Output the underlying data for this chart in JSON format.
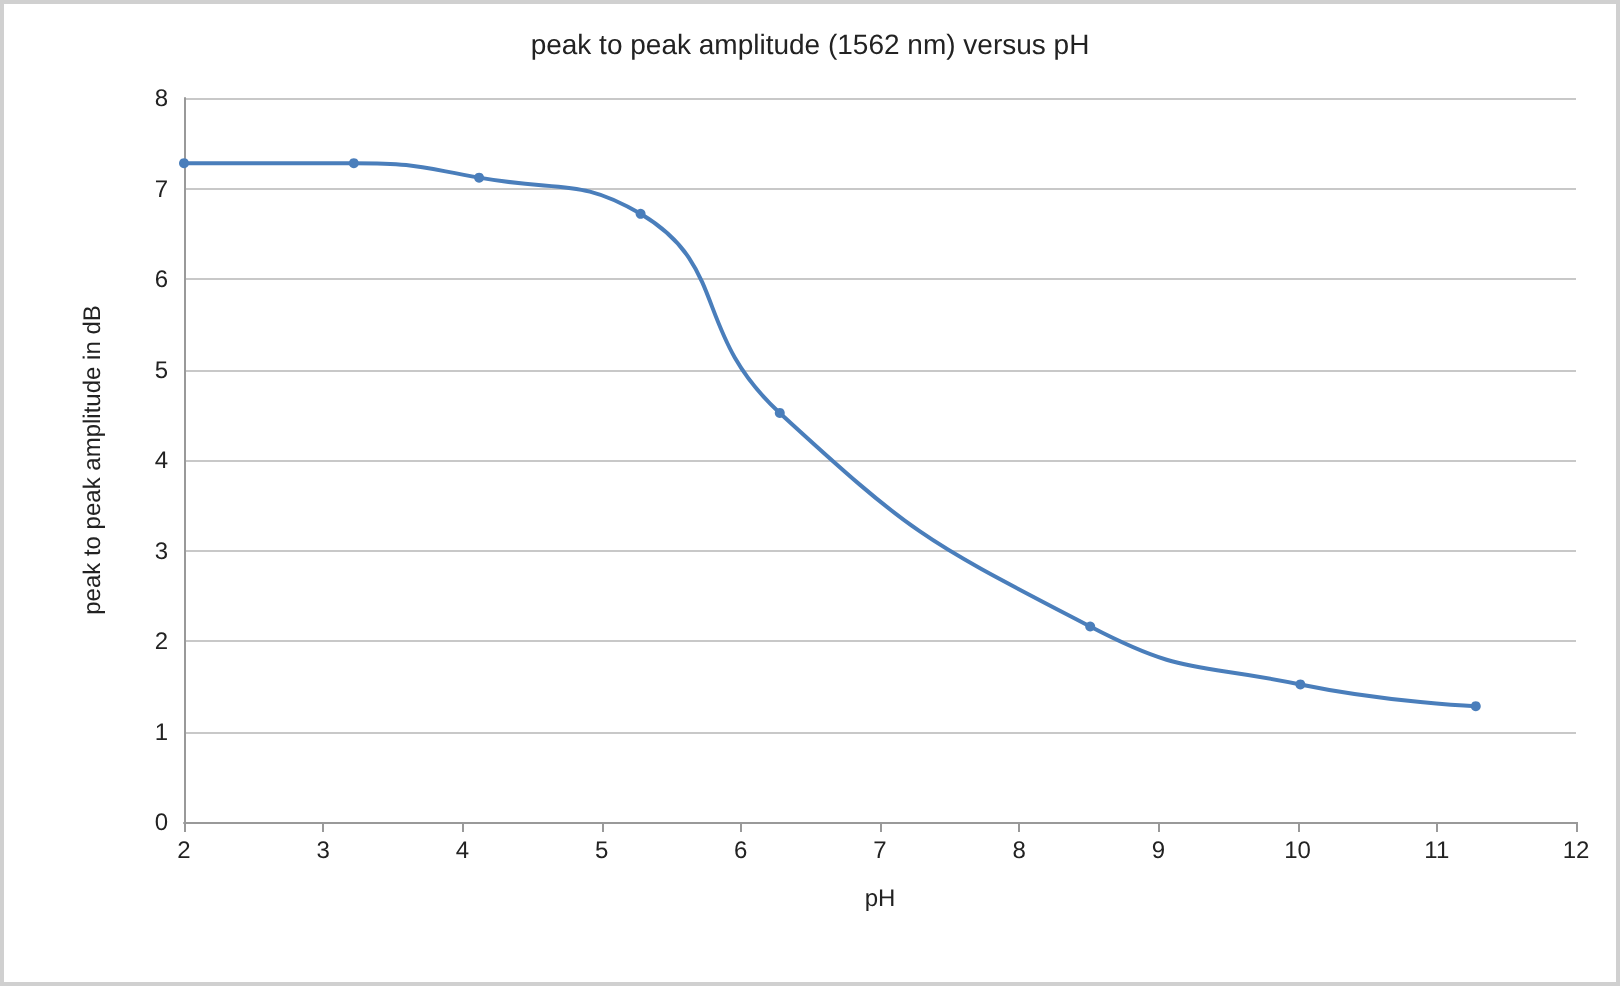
{
  "chart_data": {
    "type": "line",
    "title": "peak to peak amplitude (1562 nm) versus pH",
    "xlabel": "pH",
    "ylabel": "peak to peak amplitude in dB",
    "x": [
      2,
      3.22,
      4.12,
      5.28,
      6.28,
      8.51,
      10.02,
      11.28
    ],
    "series": [
      {
        "color": "#4a7ebb",
        "values": [
          7.28,
          7.28,
          7.12,
          6.72,
          4.52,
          2.16,
          1.52,
          1.28
        ]
      }
    ],
    "xlim": [
      2,
      12
    ],
    "xticks": [
      2,
      3,
      4,
      5,
      6,
      7,
      8,
      9,
      10,
      11,
      12
    ],
    "ylim": [
      0,
      8
    ],
    "yticks": [
      0,
      1,
      2,
      3,
      4,
      5,
      6,
      7,
      8
    ],
    "grid": "y",
    "marker": "circle",
    "line_style": "solid"
  }
}
